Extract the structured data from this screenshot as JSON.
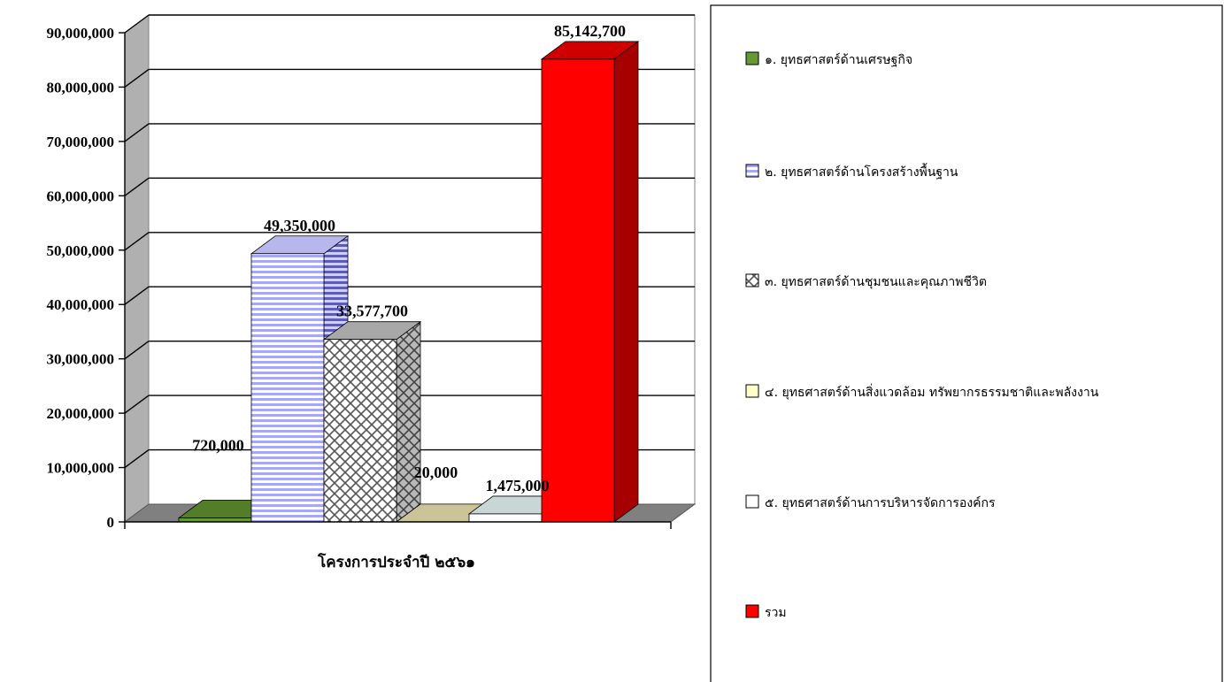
{
  "chart_data": {
    "type": "bar",
    "xlabel": "โครงการประจำปี ๒๕๖๑",
    "ylim": [
      0,
      90000000
    ],
    "yticks": [
      0,
      10000000,
      20000000,
      30000000,
      40000000,
      50000000,
      60000000,
      70000000,
      80000000,
      90000000
    ],
    "ytick_labels": [
      "0",
      "10,000,000",
      "20,000,000",
      "30,000,000",
      "40,000,000",
      "50,000,000",
      "60,000,000",
      "70,000,000",
      "80,000,000",
      "90,000,000"
    ],
    "grid": true,
    "legend_position": "right",
    "series": [
      {
        "name": "๑. ยุทธศาสตร์ด้านเศรษฐกิจ",
        "value": 720000,
        "label": "720,000",
        "pattern": "solid",
        "color": "#669933"
      },
      {
        "name": "๒. ยุทธศาสตร์ด้านโครงสร้างพื้นฐาน",
        "value": 49350000,
        "label": "49,350,000",
        "pattern": "hstripes",
        "color": "#9999ff"
      },
      {
        "name": "๓. ยุทธศาสตร์ด้านชุมชนและคุณภาพชีวิต",
        "value": 33577700,
        "label": "33,577,700",
        "pattern": "lattice",
        "color": "#808080"
      },
      {
        "name": "๔. ยุทธศาสตร์ด้านสิ่งแวดล้อม ทรัพยากรธรรมชาติและพลังงาน",
        "value": 20000,
        "label": "20,000",
        "pattern": "solid",
        "color": "#ffffcc"
      },
      {
        "name": "๕. ยุทธศาสตร์ด้านการบริหารจัดการองค์กร",
        "value": 1475000,
        "label": "1,475,000",
        "pattern": "solid",
        "color": "#ffffff"
      },
      {
        "name": "รวม",
        "value": 85142700,
        "label": "85,142,700",
        "pattern": "solid",
        "color": "#ff0000"
      }
    ]
  }
}
